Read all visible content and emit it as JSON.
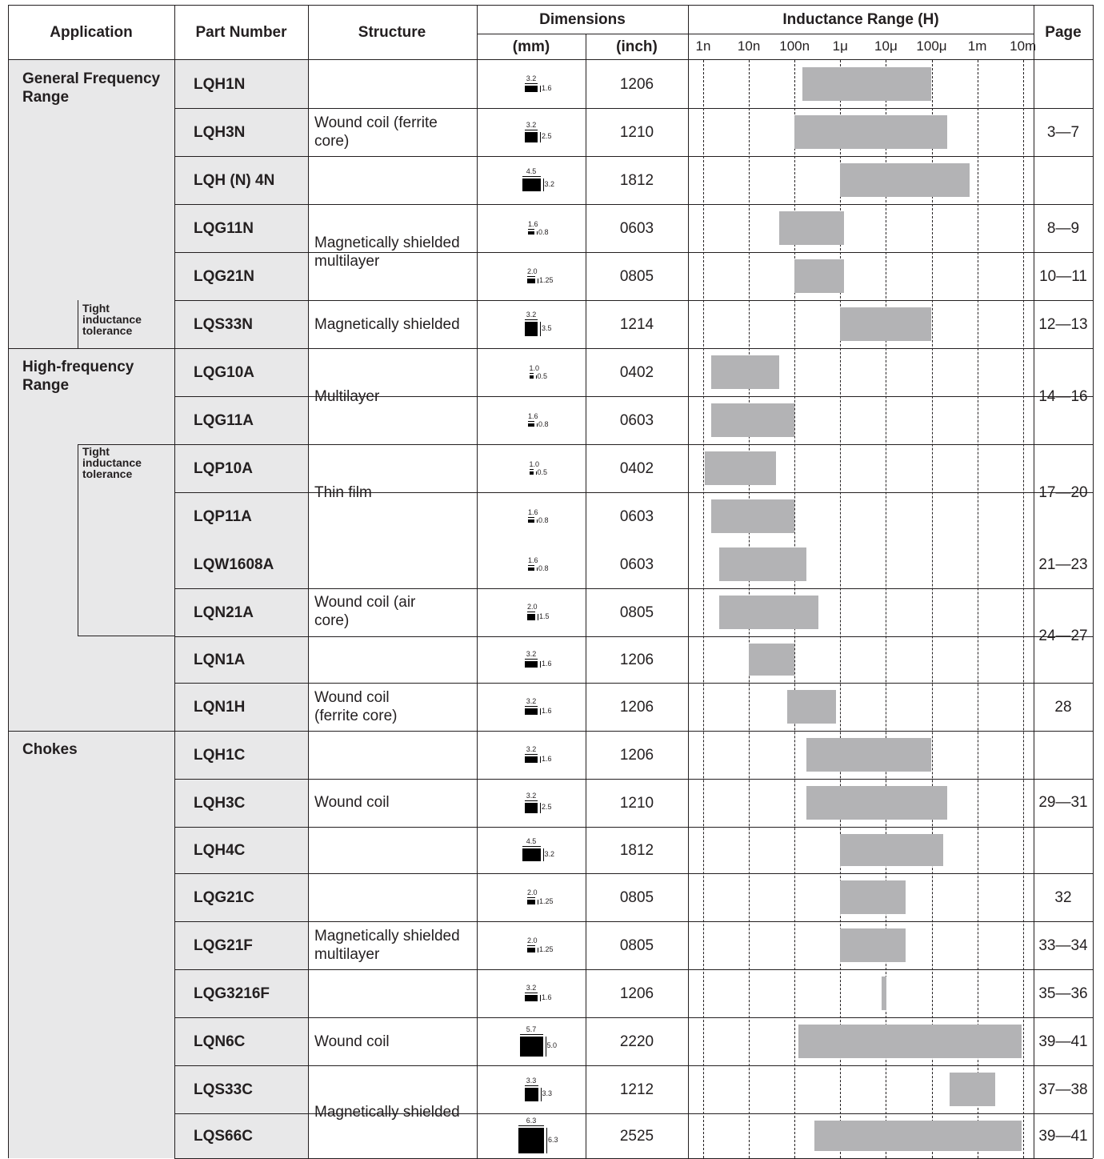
{
  "header": {
    "application": "Application",
    "part_number": "Part Number",
    "structure": "Structure",
    "dimensions": "Dimensions",
    "mm": "(mm)",
    "inch": "(inch)",
    "inductance_range": "Inductance Range (H)",
    "page": "Page"
  },
  "scale_ticks": [
    "1n",
    "10n",
    "100n",
    "1μ",
    "10μ",
    "100μ",
    "1m",
    "10m"
  ],
  "applications": [
    {
      "label": "General Frequency Range",
      "sub": "Tight inductance tolerance"
    },
    {
      "label": "High-frequency Range",
      "sub": "Tight inductance tolerance"
    },
    {
      "label": "Chokes"
    }
  ],
  "structures": [
    "Wound coil (ferrite core)",
    "Magnetically shielded multilayer",
    "Magnetically shielded",
    "Multilayer",
    "Thin film",
    "Wound coil (air core)",
    "Wound coil (ferrite core)",
    "Wound coil",
    "Magnetically shielded multilayer",
    "Wound coil",
    "Magnetically shielded"
  ],
  "pages": [
    "3—7",
    "8—9",
    "10—11",
    "12—13",
    "14—16",
    "17—20",
    "21—23",
    "24—27",
    "28",
    "29—31",
    "32",
    "33—34",
    "35—36",
    "39—41",
    "37—38",
    "39—41"
  ],
  "rows": [
    {
      "part": "LQH1N",
      "mm_l": "3.2",
      "mm_w": "1.6",
      "inch": "1206",
      "range": [
        0.15,
        100
      ]
    },
    {
      "part": "LQH3N",
      "mm_l": "3.2",
      "mm_w": "2.5",
      "inch": "1210",
      "range": [
        0.1,
        220
      ]
    },
    {
      "part": "LQH (N) 4N",
      "mm_l": "4.5",
      "mm_w": "3.2",
      "inch": "1812",
      "range": [
        1,
        680
      ]
    },
    {
      "part": "LQG11N",
      "mm_l": "1.6",
      "mm_w": "0.8",
      "inch": "0603",
      "range": [
        0.047,
        1.2
      ]
    },
    {
      "part": "LQG21N",
      "mm_l": "2.0",
      "mm_w": "1.25",
      "inch": "0805",
      "range": [
        0.1,
        1.2
      ]
    },
    {
      "part": "LQS33N",
      "mm_l": "3.2",
      "mm_w": "3.5",
      "inch": "1214",
      "range": [
        1,
        100
      ]
    },
    {
      "part": "LQG10A",
      "mm_l": "1.0",
      "mm_w": "0.5",
      "inch": "0402",
      "range": [
        0.0015,
        0.047
      ]
    },
    {
      "part": "LQG11A",
      "mm_l": "1.6",
      "mm_w": "0.8",
      "inch": "0603",
      "range": [
        0.0015,
        0.1
      ]
    },
    {
      "part": "LQP10A",
      "mm_l": "1.0",
      "mm_w": "0.5",
      "inch": "0402",
      "range": [
        0.0011,
        0.039
      ]
    },
    {
      "part": "LQP11A",
      "mm_l": "1.6",
      "mm_w": "0.8",
      "inch": "0603",
      "range": [
        0.0015,
        0.1
      ]
    },
    {
      "part": "LQW1608A",
      "mm_l": "1.6",
      "mm_w": "0.8",
      "inch": "0603",
      "range": [
        0.0022,
        0.18
      ]
    },
    {
      "part": "LQN21A",
      "mm_l": "2.0",
      "mm_w": "1.5",
      "inch": "0805",
      "range": [
        0.0022,
        0.33
      ]
    },
    {
      "part": "LQN1A",
      "mm_l": "3.2",
      "mm_w": "1.6",
      "inch": "1206",
      "range": [
        0.01,
        0.1
      ]
    },
    {
      "part": "LQN1H",
      "mm_l": "3.2",
      "mm_w": "1.6",
      "inch": "1206",
      "range": [
        0.068,
        0.82
      ]
    },
    {
      "part": "LQH1C",
      "mm_l": "3.2",
      "mm_w": "1.6",
      "inch": "1206",
      "range": [
        0.18,
        100
      ]
    },
    {
      "part": "LQH3C",
      "mm_l": "3.2",
      "mm_w": "2.5",
      "inch": "1210",
      "range": [
        0.18,
        220
      ]
    },
    {
      "part": "LQH4C",
      "mm_l": "4.5",
      "mm_w": "3.2",
      "inch": "1812",
      "range": [
        1,
        180
      ]
    },
    {
      "part": "LQG21C",
      "mm_l": "2.0",
      "mm_w": "1.25",
      "inch": "0805",
      "range": [
        1,
        27
      ]
    },
    {
      "part": "LQG21F",
      "mm_l": "2.0",
      "mm_w": "1.25",
      "inch": "0805",
      "range": [
        1,
        27
      ]
    },
    {
      "part": "LQG3216F",
      "mm_l": "3.2",
      "mm_w": "1.6",
      "inch": "1206",
      "range": [
        8,
        10
      ]
    },
    {
      "part": "LQN6C",
      "mm_l": "5.7",
      "mm_w": "5.0",
      "inch": "2220",
      "range": [
        0.12,
        10000
      ]
    },
    {
      "part": "LQS33C",
      "mm_l": "3.3",
      "mm_w": "3.3",
      "inch": "1212",
      "range": [
        250,
        2500
      ]
    },
    {
      "part": "LQS66C",
      "mm_l": "6.3",
      "mm_w": "6.3",
      "inch": "2525",
      "range": [
        0.27,
        10000
      ]
    }
  ]
}
